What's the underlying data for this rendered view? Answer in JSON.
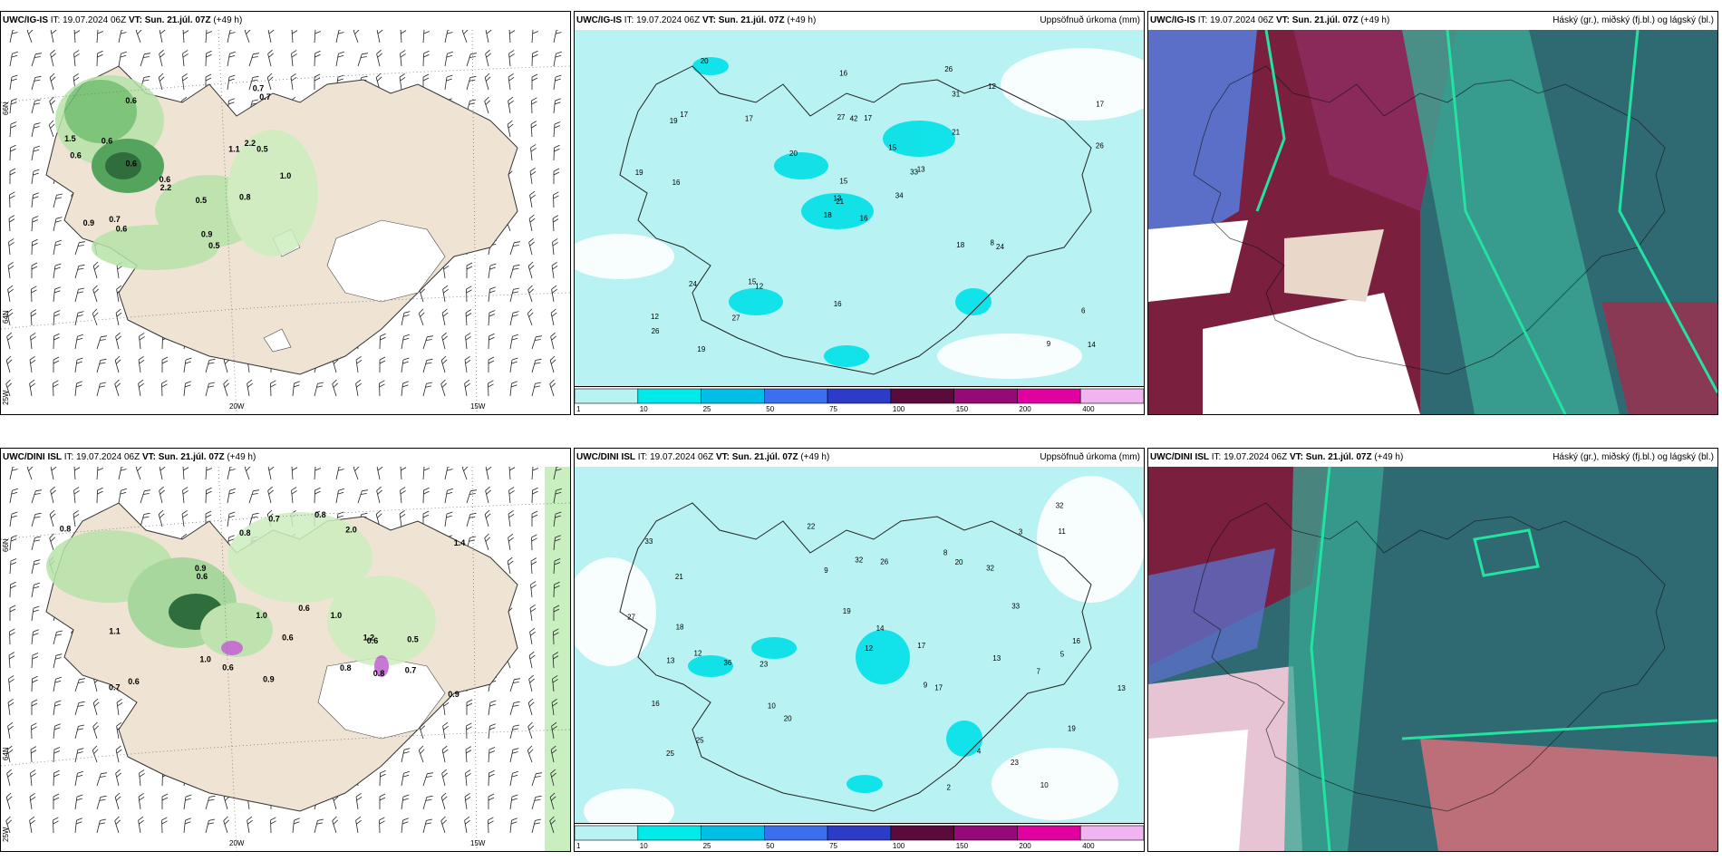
{
  "common": {
    "init_time": "19.07.2024 06Z",
    "valid_time": "Sun. 21.júl. 07Z",
    "lead": "(+49 h)",
    "it_label": "IT:",
    "vt_label": "VT:"
  },
  "rows": [
    {
      "model": "UWC/IG-IS"
    },
    {
      "model": "UWC/DINI ISL"
    }
  ],
  "panel_titles": {
    "precip": "Uppsöfnuð úrkoma (mm)",
    "cloud": "Háský (gr.), miðský (fj.bl.) og lágský (bl.)"
  },
  "grid_labels": {
    "lon": [
      "20W",
      "15W"
    ],
    "lat": [
      "66N",
      "64N",
      "25W"
    ]
  },
  "legend": {
    "colors": [
      "#b9f2f2",
      "#00eaea",
      "#00bfe6",
      "#3c6ef0",
      "#2c3cc8",
      "#5a0a3c",
      "#960a78",
      "#e100a0",
      "#f0b4f0"
    ],
    "ticks": [
      "1",
      "10",
      "25",
      "50",
      "75",
      "100",
      "150",
      "200",
      "400"
    ]
  },
  "precip_labels_top": [
    "16",
    "19",
    "21",
    "12",
    "33",
    "12",
    "26",
    "17",
    "31",
    "34",
    "20",
    "14",
    "16",
    "17",
    "18",
    "21",
    "19",
    "27",
    "15",
    "24",
    "20",
    "26",
    "27",
    "42",
    "13",
    "24",
    "17",
    "16",
    "19",
    "18",
    "26",
    "13",
    "16",
    "15",
    "17",
    "12",
    "15",
    "9",
    "6",
    "8"
  ],
  "precip_labels_bottom": [
    "10",
    "12",
    "9",
    "33",
    "19",
    "21",
    "25",
    "23",
    "32",
    "32",
    "20",
    "23",
    "20",
    "22",
    "17",
    "16",
    "13",
    "14",
    "27",
    "25",
    "32",
    "26",
    "33",
    "13",
    "16",
    "18",
    "36",
    "12",
    "19",
    "11",
    "17",
    "13",
    "10",
    "8",
    "9",
    "7",
    "5",
    "4",
    "3",
    "2"
  ],
  "val_labels_top": [
    "0.5",
    "0.6",
    "0.7",
    "0.6",
    "2.2",
    "0.9",
    "1.0",
    "0.6",
    "2.2",
    "0.6",
    "0.9",
    "1.5",
    "0.6",
    "0.5",
    "1.1",
    "0.7",
    "0.6",
    "0.7",
    "0.8",
    "0.5"
  ],
  "val_labels_bottom": [
    "0.7",
    "0.5",
    "0.6",
    "0.6",
    "0.8",
    "0.8",
    "0.7",
    "2.0",
    "0.8",
    "1.0",
    "0.9",
    "0.6",
    "0.6",
    "0.7",
    "0.8",
    "0.9",
    "1.2",
    "1.1",
    "1.0",
    "1.4",
    "0.8",
    "0.6",
    "0.9",
    "1.0",
    "0.6"
  ]
}
